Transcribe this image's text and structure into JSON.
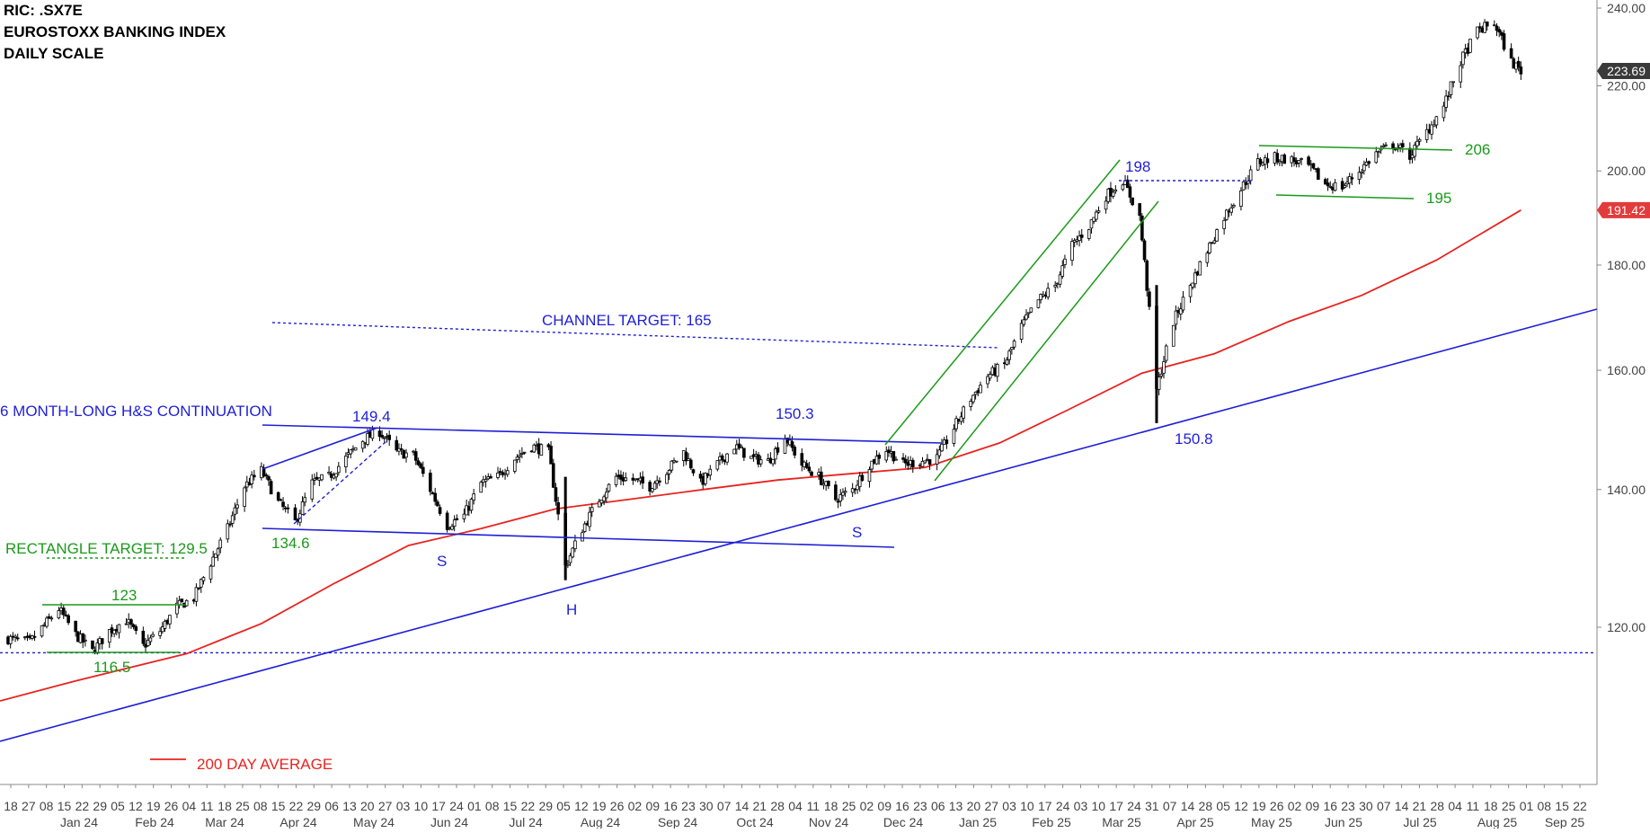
{
  "header": {
    "ric": "RIC: .SX7E",
    "index_name": "EUROSTOXX BANKING INDEX",
    "scale": "DAILY SCALE"
  },
  "colors": {
    "price": "#000000",
    "ma": "#e8231f",
    "blue": "#1f1fd6",
    "green": "#1a9a1a",
    "axis_text": "#444444",
    "last_badge": "#3a3a3a",
    "ma_badge": "#e23b3b"
  },
  "chart_data": {
    "type": "candlestick",
    "y_axis": {
      "side": "right",
      "scale": "log",
      "range": [
        105,
        240
      ],
      "ticks": [
        "240.00",
        "220.00",
        "200.00",
        "180.00",
        "160.00",
        "140.00",
        "120.00"
      ]
    },
    "x_axis": {
      "day_labels": [
        "18",
        "27",
        "08",
        "15",
        "22",
        "29",
        "05",
        "12",
        "19",
        "26",
        "04",
        "11",
        "18",
        "25",
        "08",
        "15",
        "22",
        "29",
        "06",
        "13",
        "20",
        "27",
        "03",
        "10",
        "17",
        "24",
        "01",
        "08",
        "15",
        "22",
        "29",
        "05",
        "12",
        "19",
        "26",
        "02",
        "09",
        "16",
        "23",
        "30",
        "07",
        "14",
        "21",
        "28",
        "04",
        "11",
        "18",
        "25",
        "02",
        "09",
        "16",
        "23",
        "06",
        "13",
        "20",
        "27",
        "03",
        "10",
        "17",
        "24",
        "03",
        "10",
        "17",
        "24",
        "31",
        "07",
        "14",
        "28",
        "05",
        "12",
        "19",
        "26",
        "02",
        "09",
        "16",
        "23",
        "30",
        "07",
        "14",
        "21",
        "28",
        "04",
        "11",
        "18",
        "25",
        "01",
        "08",
        "15",
        "22"
      ],
      "month_labels": [
        "Jan 24",
        "Feb 24",
        "Mar 24",
        "Apr 24",
        "May 24",
        "Jun 24",
        "Jul 24",
        "Aug 24",
        "Sep 24",
        "Oct 24",
        "Nov 24",
        "Dec 24",
        "Jan 25",
        "Feb 25",
        "Mar 25",
        "Apr 25",
        "May 25",
        "Jun 25",
        "Jul 25",
        "Aug 25",
        "Sep 25"
      ]
    },
    "price_path": [
      [
        "2023-12-18",
        118.5
      ],
      [
        "2023-12-27",
        118.0
      ],
      [
        "2024-01-08",
        122.5
      ],
      [
        "2024-01-15",
        119.0
      ],
      [
        "2024-01-22",
        116.8
      ],
      [
        "2024-01-29",
        119.5
      ],
      [
        "2024-02-05",
        121.0
      ],
      [
        "2024-02-12",
        117.5
      ],
      [
        "2024-02-19",
        119.5
      ],
      [
        "2024-02-26",
        122.8
      ],
      [
        "2024-03-04",
        124.0
      ],
      [
        "2024-03-11",
        129.0
      ],
      [
        "2024-03-18",
        134.0
      ],
      [
        "2024-03-25",
        140.5
      ],
      [
        "2024-04-01",
        143.0
      ],
      [
        "2024-04-08",
        138.0
      ],
      [
        "2024-04-15",
        135.0
      ],
      [
        "2024-04-22",
        141.0
      ],
      [
        "2024-04-29",
        142.0
      ],
      [
        "2024-05-06",
        145.0
      ],
      [
        "2024-05-13",
        148.0
      ],
      [
        "2024-05-20",
        149.4
      ],
      [
        "2024-05-27",
        146.0
      ],
      [
        "2024-06-03",
        145.5
      ],
      [
        "2024-06-10",
        140.0
      ],
      [
        "2024-06-17",
        134.5
      ],
      [
        "2024-06-24",
        136.0
      ],
      [
        "2024-07-01",
        141.0
      ],
      [
        "2024-07-08",
        142.0
      ],
      [
        "2024-07-15",
        145.0
      ],
      [
        "2024-07-22",
        147.0
      ],
      [
        "2024-07-29",
        146.0
      ],
      [
        "2024-08-05",
        128.5
      ],
      [
        "2024-08-12",
        134.0
      ],
      [
        "2024-08-19",
        138.5
      ],
      [
        "2024-08-26",
        142.0
      ],
      [
        "2024-09-02",
        141.5
      ],
      [
        "2024-09-09",
        140.5
      ],
      [
        "2024-09-16",
        143.0
      ],
      [
        "2024-09-23",
        146.0
      ],
      [
        "2024-09-30",
        141.0
      ],
      [
        "2024-10-07",
        144.0
      ],
      [
        "2024-10-14",
        147.0
      ],
      [
        "2024-10-21",
        145.0
      ],
      [
        "2024-10-28",
        144.5
      ],
      [
        "2024-11-04",
        148.5
      ],
      [
        "2024-11-11",
        144.0
      ],
      [
        "2024-11-18",
        142.0
      ],
      [
        "2024-11-25",
        138.5
      ],
      [
        "2024-12-02",
        140.0
      ],
      [
        "2024-12-09",
        144.0
      ],
      [
        "2024-12-16",
        146.5
      ],
      [
        "2024-12-23",
        144.0
      ],
      [
        "2025-01-06",
        145.0
      ],
      [
        "2025-01-13",
        150.0
      ],
      [
        "2025-01-20",
        155.0
      ],
      [
        "2025-01-27",
        159.0
      ],
      [
        "2025-02-03",
        161.0
      ],
      [
        "2025-02-10",
        168.0
      ],
      [
        "2025-02-17",
        173.0
      ],
      [
        "2025-02-24",
        176.0
      ],
      [
        "2025-03-03",
        184.0
      ],
      [
        "2025-03-10",
        188.0
      ],
      [
        "2025-03-17",
        194.5
      ],
      [
        "2025-03-24",
        198.0
      ],
      [
        "2025-03-31",
        190.0
      ],
      [
        "2025-04-07",
        156.5
      ],
      [
        "2025-04-14",
        169.0
      ],
      [
        "2025-04-28",
        183.0
      ],
      [
        "2025-05-05",
        190.0
      ],
      [
        "2025-05-12",
        196.0
      ],
      [
        "2025-05-19",
        202.0
      ],
      [
        "2025-05-26",
        203.0
      ],
      [
        "2025-06-02",
        202.5
      ],
      [
        "2025-06-09",
        201.0
      ],
      [
        "2025-06-16",
        197.0
      ],
      [
        "2025-06-23",
        196.5
      ],
      [
        "2025-06-30",
        200.0
      ],
      [
        "2025-07-07",
        204.0
      ],
      [
        "2025-07-14",
        206.0
      ],
      [
        "2025-07-21",
        203.5
      ],
      [
        "2025-07-28",
        209.0
      ],
      [
        "2025-08-04",
        215.0
      ],
      [
        "2025-08-11",
        226.0
      ],
      [
        "2025-08-18",
        234.0
      ],
      [
        "2025-08-25",
        236.0
      ],
      [
        "2025-09-01",
        226.0
      ],
      [
        "2025-09-05",
        223.69
      ]
    ],
    "moving_average": {
      "name": "200 DAY AVERAGE",
      "points": [
        [
          "2023-11-20",
          110.5
        ],
        [
          "2024-01-15",
          113.0
        ],
        [
          "2024-03-01",
          116.5
        ],
        [
          "2024-04-01",
          120.5
        ],
        [
          "2024-05-01",
          126.0
        ],
        [
          "2024-06-01",
          131.5
        ],
        [
          "2024-07-01",
          134.0
        ],
        [
          "2024-08-01",
          137.0
        ],
        [
          "2024-09-01",
          138.5
        ],
        [
          "2024-10-01",
          140.0
        ],
        [
          "2024-11-01",
          141.5
        ],
        [
          "2024-12-01",
          142.5
        ],
        [
          "2025-01-01",
          143.5
        ],
        [
          "2025-02-01",
          147.5
        ],
        [
          "2025-03-01",
          153.0
        ],
        [
          "2025-04-01",
          159.5
        ],
        [
          "2025-05-01",
          163.0
        ],
        [
          "2025-06-01",
          169.0
        ],
        [
          "2025-07-01",
          174.0
        ],
        [
          "2025-08-01",
          181.0
        ],
        [
          "2025-09-05",
          191.42
        ]
      ]
    },
    "last_price": "223.69",
    "ma_last": "191.42",
    "annotations": {
      "hs_title": "6 MONTH-LONG H&S CONTINUATION",
      "channel_target": "CHANNEL TARGET: 165",
      "rect_target": "RECTANGLE TARGET: 129.5",
      "level_149": "149.4",
      "level_150_3": "150.3",
      "level_134": "134.6",
      "level_123": "123",
      "level_116": "116.5",
      "level_198": "198",
      "level_206": "206",
      "level_195": "195",
      "level_150_8": "150.8",
      "left_shoulder": "S",
      "head": "H",
      "right_shoulder": "S"
    }
  }
}
